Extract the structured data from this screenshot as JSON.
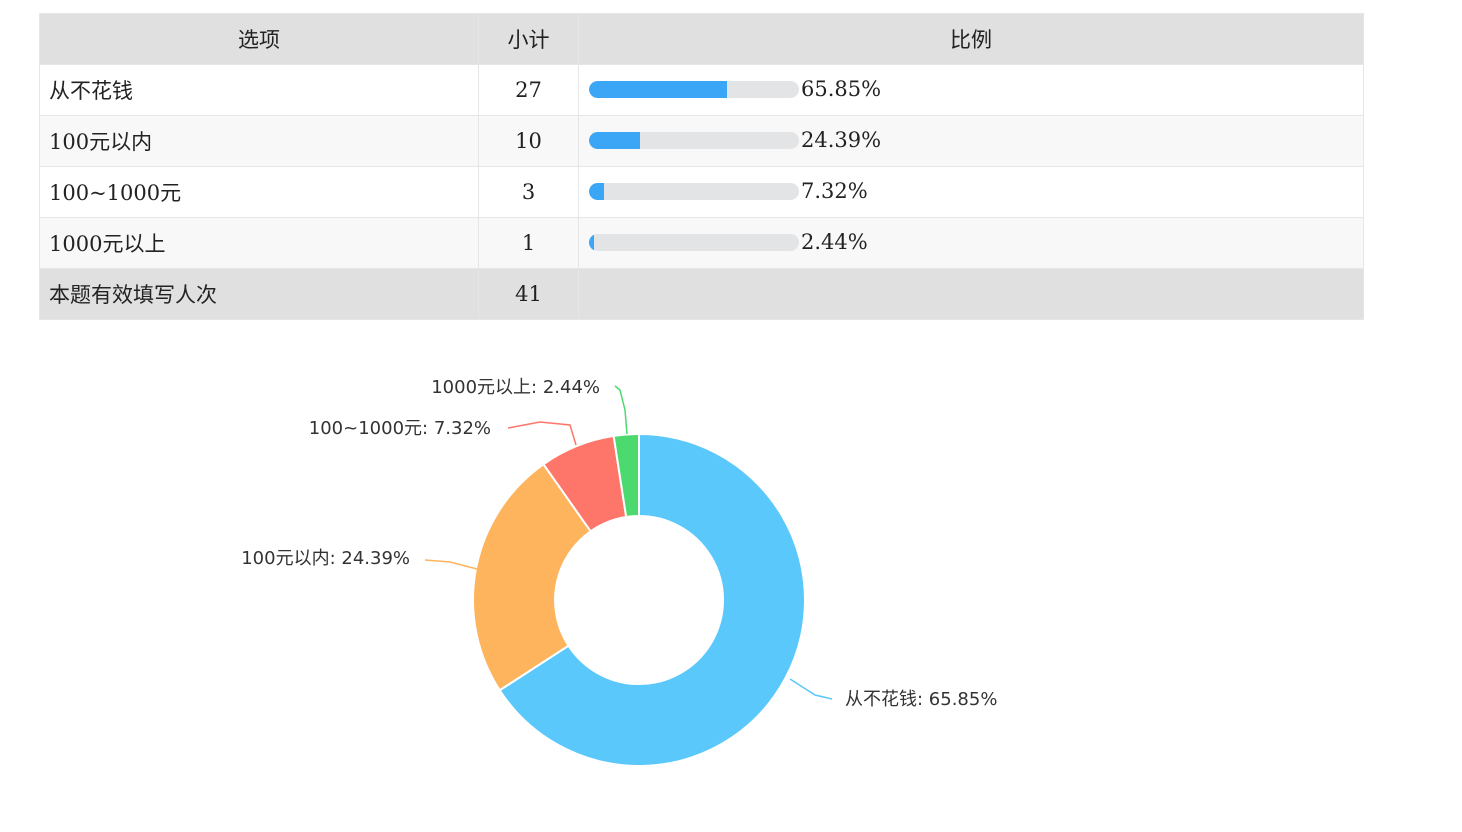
{
  "table": {
    "headers": {
      "option": "选项",
      "count": "小计",
      "ratio": "比例"
    },
    "rows": [
      {
        "option": "从不花钱",
        "count": "27",
        "ratio": 65.85,
        "ratio_label": "65.85%"
      },
      {
        "option": "100元以内",
        "count": "10",
        "ratio": 24.39,
        "ratio_label": "24.39%"
      },
      {
        "option": "100~1000元",
        "count": "3",
        "ratio": 7.32,
        "ratio_label": "7.32%"
      },
      {
        "option": "1000元以上",
        "count": "1",
        "ratio": 2.44,
        "ratio_label": "2.44%"
      }
    ],
    "total": {
      "label": "本题有效填写人次",
      "count": "41"
    },
    "bar_color": "#3aa6f5",
    "bar_track_color": "#e3e4e6"
  },
  "chart_data": {
    "type": "pie",
    "style": "donut",
    "categories": [
      "从不花钱",
      "100元以内",
      "100~1000元",
      "1000元以上"
    ],
    "values": [
      65.85,
      24.39,
      7.32,
      2.44
    ],
    "labels": [
      "从不花钱: 65.85%",
      "100元以内: 24.39%",
      "100~1000元: 7.32%",
      "1000元以上: 2.44%"
    ],
    "colors": [
      "#5bc8fb",
      "#fdb45c",
      "#fe7569",
      "#4cd96e"
    ]
  }
}
